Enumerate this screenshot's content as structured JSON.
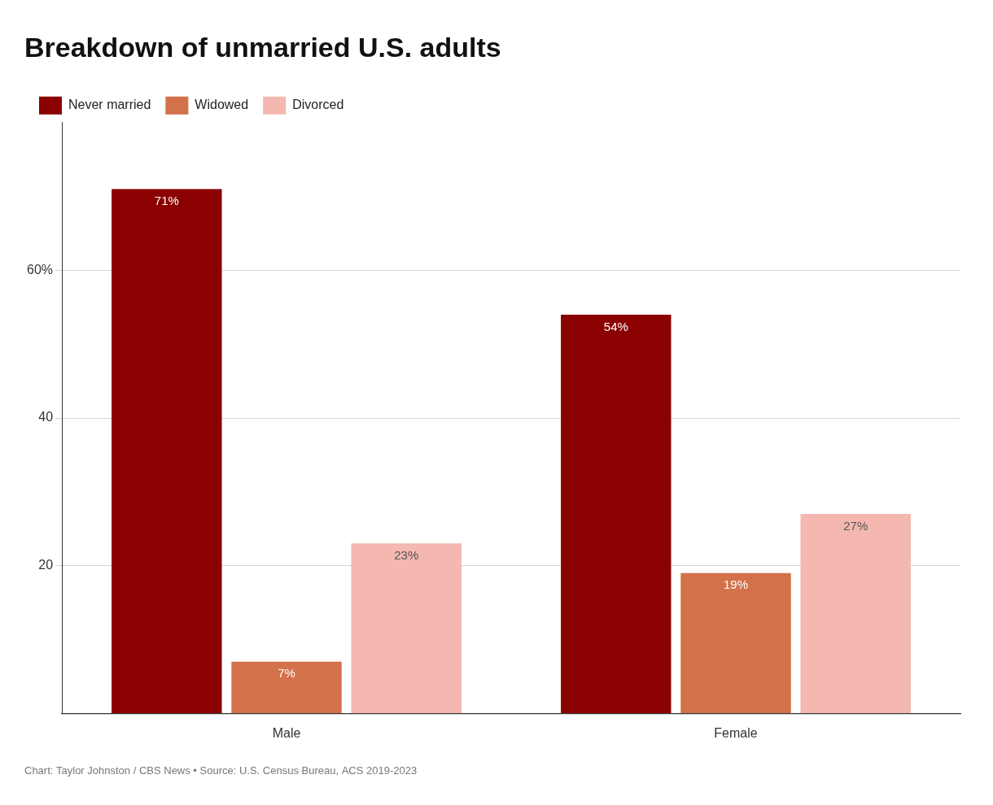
{
  "chart_data": {
    "type": "bar",
    "title": "Breakdown of unmarried U.S. adults",
    "caption": "Chart: Taylor Johnston / CBS News • Source: U.S. Census Bureau, ACS 2019-2023",
    "categories": [
      "Male",
      "Female"
    ],
    "series": [
      {
        "name": "Never married",
        "color": "#8B0000",
        "values": [
          71,
          54
        ],
        "value_labels": [
          "71%",
          "54%"
        ]
      },
      {
        "name": "Widowed",
        "color": "#D2714A",
        "values": [
          7,
          19
        ],
        "value_labels": [
          "7%",
          "19%"
        ]
      },
      {
        "name": "Divorced",
        "color": "#F4B8B0",
        "values": [
          23,
          27
        ],
        "value_labels": [
          "23%",
          "27%"
        ]
      }
    ],
    "ylim": [
      0,
      80
    ],
    "yticks": [
      20,
      40,
      {
        "value": 60,
        "label": "60%"
      }
    ],
    "grid": true,
    "legend": "upper left",
    "data_labels": true
  }
}
